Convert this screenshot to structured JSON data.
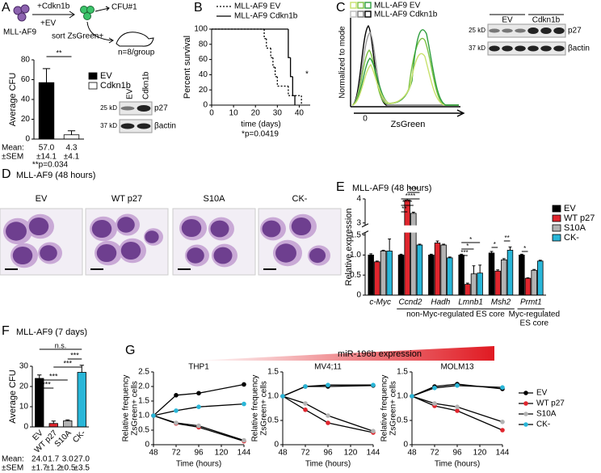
{
  "panel_labels": [
    "A",
    "B",
    "C",
    "D",
    "E",
    "F",
    "G"
  ],
  "schematic": {
    "title": "MLL-AF9",
    "plus_cdkn1b": "+Cdkn1b",
    "plus_ev": "+EV",
    "cfu": "CFU#1",
    "sort": "sort ZsGreen+",
    "n": "n=8/group"
  },
  "blots": [
    {
      "lanes": [
        "EV",
        "Cdkn1b"
      ],
      "markers": [
        "25 kD",
        "37 kD"
      ],
      "proteins": [
        "p27",
        "βactin"
      ]
    },
    {
      "lanes": [
        "EV",
        "Cdkn1b"
      ],
      "markers": [
        "25 kD",
        "37 kD"
      ],
      "proteins": [
        "p27",
        "βactin"
      ]
    }
  ],
  "flow": {
    "legend": [
      "MLL-AF9 EV",
      "MLL-AF9 Cdkn1b"
    ],
    "ylabel": "Normalized to mode",
    "xlabel": "ZsGreen",
    "xtick": "0"
  },
  "micrographs": {
    "title": "MLL-AF9 (48 hours)",
    "labels": [
      "EV",
      "WT p27",
      "S10A",
      "CK-"
    ]
  },
  "gradient_label": "miR-196b expression",
  "chart_data": [
    {
      "type": "bar",
      "ylabel": "Average CFU",
      "categories": [
        "EV",
        "Cdkn1b"
      ],
      "values": [
        57.0,
        4.3
      ],
      "value_labels": [
        "57.0",
        "4.3"
      ],
      "errors": [
        14.1,
        4.1
      ],
      "error_labels": [
        "±14.1",
        "±4.1"
      ],
      "colors": [
        "#000000",
        "#ffffff"
      ],
      "ylim": [
        0,
        80
      ],
      "yticks": [
        0,
        20,
        40,
        60,
        80
      ],
      "row_labels": [
        "Mean:",
        "±SEM"
      ],
      "annotations": [
        "**",
        "**p=0.034"
      ],
      "legend": "right"
    },
    {
      "type": "line",
      "step": true,
      "xlabel": "time (days)",
      "ylabel": "Percent survival",
      "xlim": [
        0,
        45
      ],
      "xticks": [
        0,
        10,
        20,
        30,
        40
      ],
      "ylim": [
        0,
        100
      ],
      "yticks": [
        0,
        20,
        40,
        60,
        80,
        100
      ],
      "series": [
        {
          "name": "MLL-AF9 EV",
          "color": "#000000",
          "dash": "dotted",
          "x": [
            0,
            24,
            25,
            27,
            28,
            29,
            30,
            35,
            41
          ],
          "values": [
            100,
            87.5,
            75,
            62.5,
            50,
            37.5,
            25,
            12.5,
            0
          ]
        },
        {
          "name": "MLL-AF9 Cdkn1b",
          "color": "#000000",
          "dash": "solid",
          "x": [
            0,
            35,
            36,
            37,
            38
          ],
          "values": [
            100,
            62.5,
            37.5,
            12.5,
            0
          ]
        }
      ],
      "annotations": [
        "*",
        "*p=0.0419"
      ],
      "legend": "top"
    },
    {
      "type": "bar",
      "title": "MLL-AF9 (48 hours)",
      "ylabel": "Relative expression",
      "italic_categories": true,
      "categories": [
        "c-Myc",
        "Ccnd2",
        "Hadh",
        "Lmnb1",
        "Msh2",
        "Prmt1"
      ],
      "series": [
        {
          "name": "EV",
          "color": "#000000",
          "values": [
            1.0,
            1.0,
            1.0,
            1.0,
            1.05,
            1.0
          ],
          "errors": [
            0.03,
            0.02,
            0.02,
            0.02,
            0.04,
            0.02
          ]
        },
        {
          "name": "WT p27",
          "color": "#e0262e",
          "values": [
            0.83,
            3.95,
            1.3,
            0.27,
            0.6,
            0.42
          ],
          "errors": [
            0.02,
            0.05,
            0.05,
            0.03,
            0.03,
            0.01
          ]
        },
        {
          "name": "S10A",
          "color": "#b3b3b3",
          "values": [
            1.1,
            3.4,
            1.25,
            0.53,
            0.88,
            0.62
          ],
          "errors": [
            0.02,
            0.05,
            0.02,
            0.2,
            0.03,
            0.02
          ]
        },
        {
          "name": "CK-",
          "color": "#29b6d8",
          "values": [
            1.1,
            1.25,
            0.93,
            0.55,
            1.12,
            0.85
          ],
          "errors": [
            0.3,
            0.02,
            0.02,
            0.2,
            0.08,
            0.02
          ]
        }
      ],
      "ylim": [
        0,
        4
      ],
      "axis_break": [
        1.5,
        3
      ],
      "yticks": [
        0,
        0.5,
        {
          "value": 1,
          "label": "1.0"
        },
        1.5,
        3,
        4
      ],
      "group_labels": [
        "non-Myc-regulated ES core",
        "Myc-regulated",
        "ES core"
      ],
      "annotations": [
        "****",
        "****",
        "****",
        "**",
        "*",
        "*",
        "***",
        "*",
        "**",
        "*"
      ],
      "legend": "right"
    },
    {
      "type": "bar",
      "title": "MLL-AF9 (7 days)",
      "ylabel": "Average CFU",
      "rotate_categories": true,
      "categories": [
        "EV",
        "WT p27",
        "S10A",
        "CK-"
      ],
      "values": [
        24.0,
        1.7,
        3.0,
        27.0
      ],
      "value_labels": [
        "24.0",
        "1.7",
        "3.0",
        "27.0"
      ],
      "errors": [
        1.7,
        1.2,
        0.5,
        3.5
      ],
      "error_labels": [
        "±1.7",
        "±1.2",
        "±0.5",
        "±3.5"
      ],
      "colors": [
        "#000000",
        "#e0262e",
        "#b3b3b3",
        "#29b6d8"
      ],
      "ylim": [
        0,
        30
      ],
      "yticks": [
        0,
        10,
        20,
        30
      ],
      "row_labels": [
        "Mean:",
        "±SEM"
      ],
      "annotations": [
        "n.s.",
        "***",
        "***",
        "***",
        "***"
      ]
    },
    {
      "type": "line",
      "title": "THP1",
      "xlabel": "Time (hours)",
      "ylabel": [
        "Relative frequency",
        "ZsGreen+ cells"
      ],
      "markers": true,
      "xlim": [
        48,
        144
      ],
      "xticks": [
        48,
        72,
        96,
        120,
        144
      ],
      "ylim": [
        0,
        2.5
      ],
      "yticks": [
        0,
        0.5,
        {
          "value": 1,
          "label": "1.0"
        },
        1.5,
        {
          "value": 2,
          "label": "2.0"
        },
        2.5
      ],
      "x": [
        48,
        72,
        96,
        144
      ],
      "series": [
        {
          "color": "#000000",
          "values": [
            1,
            1.7,
            1.77,
            2.07
          ]
        },
        {
          "color": "#e0262e",
          "values": [
            1,
            0.73,
            0.6,
            0.12
          ]
        },
        {
          "color": "#b3b3b3",
          "values": [
            1,
            0.75,
            0.65,
            0.15
          ]
        },
        {
          "color": "#29b6d8",
          "values": [
            1,
            1.17,
            1.3,
            1.4
          ]
        }
      ]
    },
    {
      "type": "line",
      "title": "MV4;11",
      "xlabel": "Time (hours)",
      "ylabel": [
        "Relative frequency",
        "ZsGreen+ cells"
      ],
      "markers": true,
      "xlim": [
        48,
        144
      ],
      "xticks": [
        48,
        72,
        96,
        120,
        144
      ],
      "ylim": [
        0,
        1.5
      ],
      "yticks": [
        0,
        0.5,
        {
          "value": 1,
          "label": "1.0"
        },
        1.5
      ],
      "x": [
        48,
        72,
        96,
        144
      ],
      "series": [
        {
          "color": "#000000",
          "values": [
            1,
            1.2,
            1.2,
            1.22
          ]
        },
        {
          "color": "#e0262e",
          "values": [
            1,
            0.72,
            0.45,
            0.25
          ]
        },
        {
          "color": "#b3b3b3",
          "values": [
            1,
            0.85,
            0.6,
            0.28
          ]
        },
        {
          "color": "#29b6d8",
          "values": [
            1,
            1.2,
            1.23,
            1.23
          ]
        }
      ]
    },
    {
      "type": "line",
      "title": "MOLM13",
      "xlabel": "Time (hours)",
      "ylabel": [
        "Relative frequency",
        "ZsGreen+ cells"
      ],
      "markers": true,
      "xlim": [
        48,
        144
      ],
      "xticks": [
        48,
        72,
        96,
        120,
        144
      ],
      "ylim": [
        0,
        1.5
      ],
      "yticks": [
        0,
        0.5,
        {
          "value": 1,
          "label": "1.0"
        },
        1.5
      ],
      "x": [
        48,
        72,
        96,
        144
      ],
      "series": [
        {
          "name": "EV",
          "color": "#000000",
          "values": [
            1,
            1.2,
            1.25,
            1.15
          ]
        },
        {
          "name": "WT p27",
          "color": "#e0262e",
          "values": [
            1,
            0.8,
            0.7,
            0.3
          ]
        },
        {
          "name": "S10A",
          "color": "#b3b3b3",
          "values": [
            1,
            0.85,
            0.78,
            0.47
          ]
        },
        {
          "name": "CK-",
          "color": "#29b6d8",
          "values": [
            1,
            1.17,
            1.22,
            1.18
          ]
        }
      ],
      "legend": "right"
    }
  ]
}
